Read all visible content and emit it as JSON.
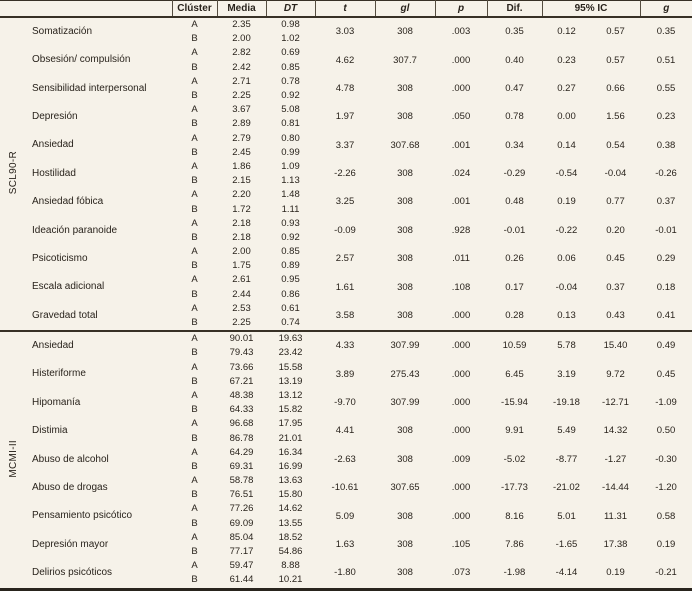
{
  "colors": {
    "background": "#f6f2e9",
    "text": "#29231c",
    "rules": "#383126"
  },
  "table": {
    "headers": {
      "cluster": "Clúster",
      "media": "Media",
      "dt": "DT",
      "t": "t",
      "gl": "gl",
      "p": "p",
      "dif": "Dif.",
      "ic": "95% IC",
      "g": "g"
    },
    "sections": [
      {
        "group": "SCL90-R",
        "scales": [
          {
            "name": "Somatización",
            "cluster_a": "A",
            "media_a": "2.35",
            "dt_a": "0.98",
            "cluster_b": "B",
            "media_b": "2.00",
            "dt_b": "1.02",
            "t": "3.03",
            "gl": "308",
            "p": ".003",
            "dif": "0.35",
            "ic_lower": "0.12",
            "ic_upper": "0.57",
            "g": "0.35"
          },
          {
            "name": "Obsesión/ compulsión",
            "cluster_a": "A",
            "media_a": "2.82",
            "dt_a": "0.69",
            "cluster_b": "B",
            "media_b": "2.42",
            "dt_b": "0.85",
            "t": "4.62",
            "gl": "307.7",
            "p": ".000",
            "dif": "0.40",
            "ic_lower": "0.23",
            "ic_upper": "0.57",
            "g": "0.51"
          },
          {
            "name": "Sensibilidad interpersonal",
            "cluster_a": "A",
            "media_a": "2.71",
            "dt_a": "0.78",
            "cluster_b": "B",
            "media_b": "2.25",
            "dt_b": "0.92",
            "t": "4.78",
            "gl": "308",
            "p": ".000",
            "dif": "0.47",
            "ic_lower": "0.27",
            "ic_upper": "0.66",
            "g": "0.55"
          },
          {
            "name": "Depresión",
            "cluster_a": "A",
            "media_a": "3.67",
            "dt_a": "5.08",
            "cluster_b": "B",
            "media_b": "2.89",
            "dt_b": "0.81",
            "t": "1.97",
            "gl": "308",
            "p": ".050",
            "dif": "0.78",
            "ic_lower": "0.00",
            "ic_upper": "1.56",
            "g": "0.23"
          },
          {
            "name": "Ansiedad",
            "cluster_a": "A",
            "media_a": "2.79",
            "dt_a": "0.80",
            "cluster_b": "B",
            "media_b": "2.45",
            "dt_b": "0.99",
            "t": "3.37",
            "gl": "307.68",
            "p": ".001",
            "dif": "0.34",
            "ic_lower": "0.14",
            "ic_upper": "0.54",
            "g": "0.38"
          },
          {
            "name": "Hostilidad",
            "cluster_a": "A",
            "media_a": "1.86",
            "dt_a": "1.09",
            "cluster_b": "B",
            "media_b": "2.15",
            "dt_b": "1.13",
            "t": "-2.26",
            "gl": "308",
            "p": ".024",
            "dif": "-0.29",
            "ic_lower": "-0.54",
            "ic_upper": "-0.04",
            "g": "-0.26"
          },
          {
            "name": "Ansiedad fóbica",
            "cluster_a": "A",
            "media_a": "2.20",
            "dt_a": "1.48",
            "cluster_b": "B",
            "media_b": "1.72",
            "dt_b": "1.11",
            "t": "3.25",
            "gl": "308",
            "p": ".001",
            "dif": "0.48",
            "ic_lower": "0.19",
            "ic_upper": "0.77",
            "g": "0.37"
          },
          {
            "name": "Ideación paranoide",
            "cluster_a": "A",
            "media_a": "2.18",
            "dt_a": "0.93",
            "cluster_b": "B",
            "media_b": "2.18",
            "dt_b": "0.92",
            "t": "-0.09",
            "gl": "308",
            "p": ".928",
            "dif": "-0.01",
            "ic_lower": "-0.22",
            "ic_upper": "0.20",
            "g": "-0.01"
          },
          {
            "name": "Psicoticismo",
            "cluster_a": "A",
            "media_a": "2.00",
            "dt_a": "0.85",
            "cluster_b": "B",
            "media_b": "1.75",
            "dt_b": "0.89",
            "t": "2.57",
            "gl": "308",
            "p": ".011",
            "dif": "0.26",
            "ic_lower": "0.06",
            "ic_upper": "0.45",
            "g": "0.29"
          },
          {
            "name": "Escala adicional",
            "cluster_a": "A",
            "media_a": "2.61",
            "dt_a": "0.95",
            "cluster_b": "B",
            "media_b": "2.44",
            "dt_b": "0.86",
            "t": "1.61",
            "gl": "308",
            "p": ".108",
            "dif": "0.17",
            "ic_lower": "-0.04",
            "ic_upper": "0.37",
            "g": "0.18"
          },
          {
            "name": "Gravedad total",
            "cluster_a": "A",
            "media_a": "2.53",
            "dt_a": "0.61",
            "cluster_b": "B",
            "media_b": "2.25",
            "dt_b": "0.74",
            "t": "3.58",
            "gl": "308",
            "p": ".000",
            "dif": "0.28",
            "ic_lower": "0.13",
            "ic_upper": "0.43",
            "g": "0.41"
          }
        ]
      },
      {
        "group": "MCMI-II",
        "scales": [
          {
            "name": "Ansiedad",
            "cluster_a": "A",
            "media_a": "90.01",
            "dt_a": "19.63",
            "cluster_b": "B",
            "media_b": "79.43",
            "dt_b": "23.42",
            "t": "4.33",
            "gl": "307.99",
            "p": ".000",
            "dif": "10.59",
            "ic_lower": "5.78",
            "ic_upper": "15.40",
            "g": "0.49"
          },
          {
            "name": "Histeriforme",
            "cluster_a": "A",
            "media_a": "73.66",
            "dt_a": "15.58",
            "cluster_b": "B",
            "media_b": "67.21",
            "dt_b": "13.19",
            "t": "3.89",
            "gl": "275.43",
            "p": ".000",
            "dif": "6.45",
            "ic_lower": "3.19",
            "ic_upper": "9.72",
            "g": "0.45"
          },
          {
            "name": "Hipomanía",
            "cluster_a": "A",
            "media_a": "48.38",
            "dt_a": "13.12",
            "cluster_b": "B",
            "media_b": "64.33",
            "dt_b": "15.82",
            "t": "-9.70",
            "gl": "307.99",
            "p": ".000",
            "dif": "-15.94",
            "ic_lower": "-19.18",
            "ic_upper": "-12.71",
            "g": "-1.09"
          },
          {
            "name": "Distimia",
            "cluster_a": "A",
            "media_a": "96.68",
            "dt_a": "17.95",
            "cluster_b": "B",
            "media_b": "86.78",
            "dt_b": "21.01",
            "t": "4.41",
            "gl": "308",
            "p": ".000",
            "dif": "9.91",
            "ic_lower": "5.49",
            "ic_upper": "14.32",
            "g": "0.50"
          },
          {
            "name": "Abuso de alcohol",
            "cluster_a": "A",
            "media_a": "64.29",
            "dt_a": "16.34",
            "cluster_b": "B",
            "media_b": "69.31",
            "dt_b": "16.99",
            "t": "-2.63",
            "gl": "308",
            "p": ".009",
            "dif": "-5.02",
            "ic_lower": "-8.77",
            "ic_upper": "-1.27",
            "g": "-0.30"
          },
          {
            "name": "Abuso de drogas",
            "cluster_a": "A",
            "media_a": "58.78",
            "dt_a": "13.63",
            "cluster_b": "B",
            "media_b": "76.51",
            "dt_b": "15.80",
            "t": "-10.61",
            "gl": "307.65",
            "p": ".000",
            "dif": "-17.73",
            "ic_lower": "-21.02",
            "ic_upper": "-14.44",
            "g": "-1.20"
          },
          {
            "name": "Pensamiento psicótico",
            "cluster_a": "A",
            "media_a": "77.26",
            "dt_a": "14.62",
            "cluster_b": "B",
            "media_b": "69.09",
            "dt_b": "13.55",
            "t": "5.09",
            "gl": "308",
            "p": ".000",
            "dif": "8.16",
            "ic_lower": "5.01",
            "ic_upper": "11.31",
            "g": "0.58"
          },
          {
            "name": "Depresión mayor",
            "cluster_a": "A",
            "media_a": "85.04",
            "dt_a": "18.52",
            "cluster_b": "B",
            "media_b": "77.17",
            "dt_b": "54.86",
            "t": "1.63",
            "gl": "308",
            "p": ".105",
            "dif": "7.86",
            "ic_lower": "-1.65",
            "ic_upper": "17.38",
            "g": "0.19"
          },
          {
            "name": "Delirios psicóticos",
            "cluster_a": "A",
            "media_a": "59.47",
            "dt_a": "8.88",
            "cluster_b": "B",
            "media_b": "61.44",
            "dt_b": "10.21",
            "t": "-1.80",
            "gl": "308",
            "p": ".073",
            "dif": "-1.98",
            "ic_lower": "-4.14",
            "ic_upper": "0.19",
            "g": "-0.21"
          }
        ]
      }
    ]
  }
}
